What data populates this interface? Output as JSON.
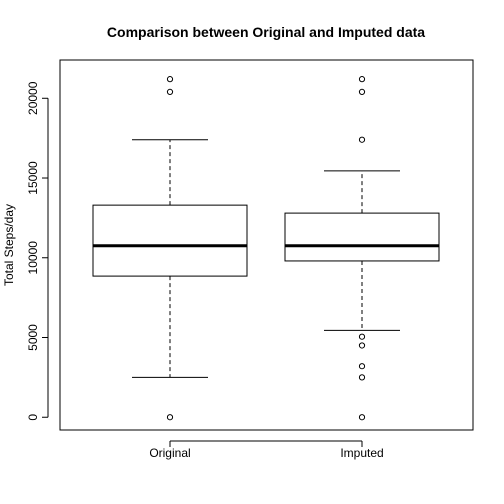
{
  "chart_data": {
    "type": "boxplot",
    "title": "Comparison between Original and Imputed data",
    "xlabel": "",
    "ylabel": "Total Steps/day",
    "ylim": [
      -800,
      22400
    ],
    "yticks": [
      0,
      5000,
      10000,
      15000,
      20000
    ],
    "categories": [
      "Original",
      "Imputed"
    ],
    "boxes": [
      {
        "name": "Original",
        "whisker_low": 2500,
        "q1": 8850,
        "median": 10750,
        "q3": 13300,
        "whisker_high": 17400,
        "outliers": [
          0,
          20400,
          21200
        ]
      },
      {
        "name": "Imputed",
        "whisker_low": 5450,
        "q1": 9800,
        "median": 10750,
        "q3": 12800,
        "whisker_high": 15450,
        "outliers": [
          0,
          2500,
          3200,
          4500,
          5050,
          17400,
          20400,
          21200
        ]
      }
    ],
    "colors": {
      "line": "#000000",
      "background": "#ffffff"
    }
  }
}
